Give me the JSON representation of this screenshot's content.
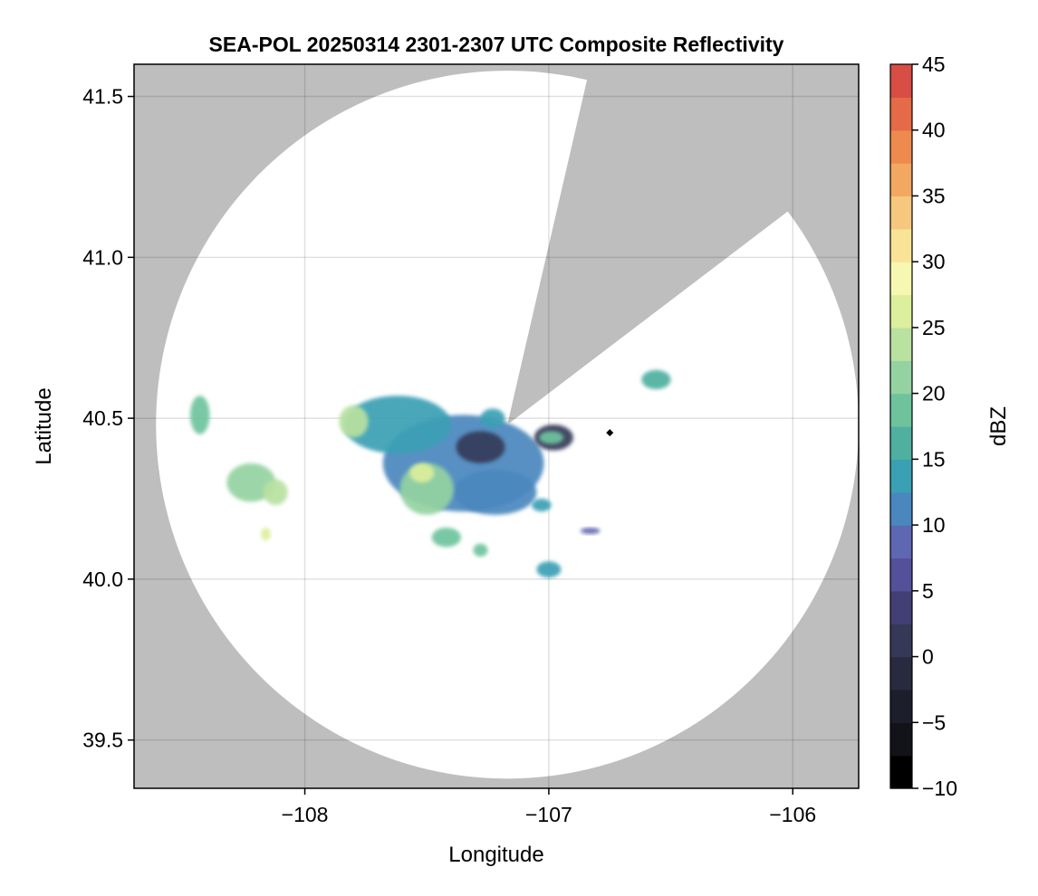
{
  "chart_data": {
    "type": "heatmap",
    "title": "SEA-POL 20250314 2301-2307 UTC Composite Reflectivity",
    "xlabel": "Longitude",
    "ylabel": "Latitude",
    "xlim": [
      -108.7,
      -105.73
    ],
    "ylim": [
      39.35,
      41.6
    ],
    "xticks": [
      -108,
      -107,
      -106
    ],
    "xtick_labels": [
      "−108",
      "−107",
      "−106"
    ],
    "yticks": [
      39.5,
      40.0,
      40.5,
      41.0,
      41.5
    ],
    "ytick_labels": [
      "39.5",
      "40.0",
      "40.5",
      "41.0",
      "41.5"
    ],
    "grid": true,
    "missing_color": "#bebebe",
    "radar": {
      "center_lon": -107.17,
      "center_lat": 40.48,
      "range_radius_deg_lon": 1.44,
      "range_radius_deg_lat": 1.1,
      "blocked_sector_boundary_points": [
        [
          -106.85,
          41.53
        ],
        [
          -106.06,
          41.12
        ]
      ]
    },
    "colorbar": {
      "label": "dBZ",
      "range": [
        -10,
        45
      ],
      "step": 2.5,
      "ticks": [
        -10,
        -5,
        0,
        5,
        10,
        15,
        20,
        25,
        30,
        35,
        40,
        45
      ],
      "tick_labels": [
        "−10",
        "−5",
        "0",
        "5",
        "10",
        "15",
        "20",
        "25",
        "30",
        "35",
        "40",
        "45"
      ],
      "colors": [
        "#000000",
        "#121219",
        "#1d1e2b",
        "#282b3f",
        "#353958",
        "#423f74",
        "#55509a",
        "#5e67b1",
        "#4a87be",
        "#3aa0b4",
        "#4fb0a0",
        "#6ec39d",
        "#94d3a1",
        "#b9e1a0",
        "#dcef9c",
        "#f6f7b1",
        "#f9e396",
        "#f5c87d",
        "#f2a860",
        "#ee8a4d",
        "#e56a48",
        "#d84d44",
        "#c52e47",
        "#a5124c",
        "#b91c69",
        "#cf3b86",
        "#e06aa5",
        "#e7a3cd",
        "#c497cb",
        "#a87bbd",
        "#8a57a5",
        "#6a2d83",
        "#4d1061",
        "#300445"
      ]
    },
    "echoes": [
      {
        "lon": -107.35,
        "lat": 40.36,
        "rlon": 0.33,
        "rlat": 0.15,
        "dbz": 12
      },
      {
        "lon": -107.62,
        "lat": 40.48,
        "rlon": 0.22,
        "rlat": 0.09,
        "dbz": 14
      },
      {
        "lon": -107.22,
        "lat": 40.27,
        "rlon": 0.17,
        "rlat": 0.07,
        "dbz": 10
      },
      {
        "lon": -107.28,
        "lat": 40.41,
        "rlon": 0.1,
        "rlat": 0.05,
        "dbz": 0
      },
      {
        "lon": -107.5,
        "lat": 40.28,
        "rlon": 0.11,
        "rlat": 0.08,
        "dbz": 20
      },
      {
        "lon": -107.8,
        "lat": 40.49,
        "rlon": 0.06,
        "rlat": 0.05,
        "dbz": 24
      },
      {
        "lon": -107.52,
        "lat": 40.33,
        "rlon": 0.05,
        "rlat": 0.03,
        "dbz": 26
      },
      {
        "lon": -106.98,
        "lat": 40.44,
        "rlon": 0.08,
        "rlat": 0.04,
        "dbz": 2
      },
      {
        "lon": -106.99,
        "lat": 40.44,
        "rlon": 0.05,
        "rlat": 0.02,
        "dbz": 18
      },
      {
        "lon": -107.23,
        "lat": 40.5,
        "rlon": 0.05,
        "rlat": 0.03,
        "dbz": 13
      },
      {
        "lon": -108.43,
        "lat": 40.51,
        "rlon": 0.04,
        "rlat": 0.06,
        "dbz": 19
      },
      {
        "lon": -108.22,
        "lat": 40.3,
        "rlon": 0.1,
        "rlat": 0.06,
        "dbz": 21
      },
      {
        "lon": -108.12,
        "lat": 40.27,
        "rlon": 0.05,
        "rlat": 0.04,
        "dbz": 24
      },
      {
        "lon": -108.16,
        "lat": 40.14,
        "rlon": 0.02,
        "rlat": 0.02,
        "dbz": 25
      },
      {
        "lon": -107.42,
        "lat": 40.13,
        "rlon": 0.06,
        "rlat": 0.03,
        "dbz": 19
      },
      {
        "lon": -107.0,
        "lat": 40.03,
        "rlon": 0.05,
        "rlat": 0.025,
        "dbz": 14
      },
      {
        "lon": -106.56,
        "lat": 40.62,
        "rlon": 0.06,
        "rlat": 0.03,
        "dbz": 15
      },
      {
        "lon": -107.03,
        "lat": 40.23,
        "rlon": 0.04,
        "rlat": 0.02,
        "dbz": 13
      },
      {
        "lon": -107.28,
        "lat": 40.09,
        "rlon": 0.03,
        "rlat": 0.02,
        "dbz": 18
      },
      {
        "lon": -106.83,
        "lat": 40.15,
        "rlon": 0.04,
        "rlat": 0.01,
        "dbz": 9
      }
    ],
    "point_marker": {
      "lon": -106.75,
      "lat": 40.455,
      "color": "#000000"
    }
  }
}
